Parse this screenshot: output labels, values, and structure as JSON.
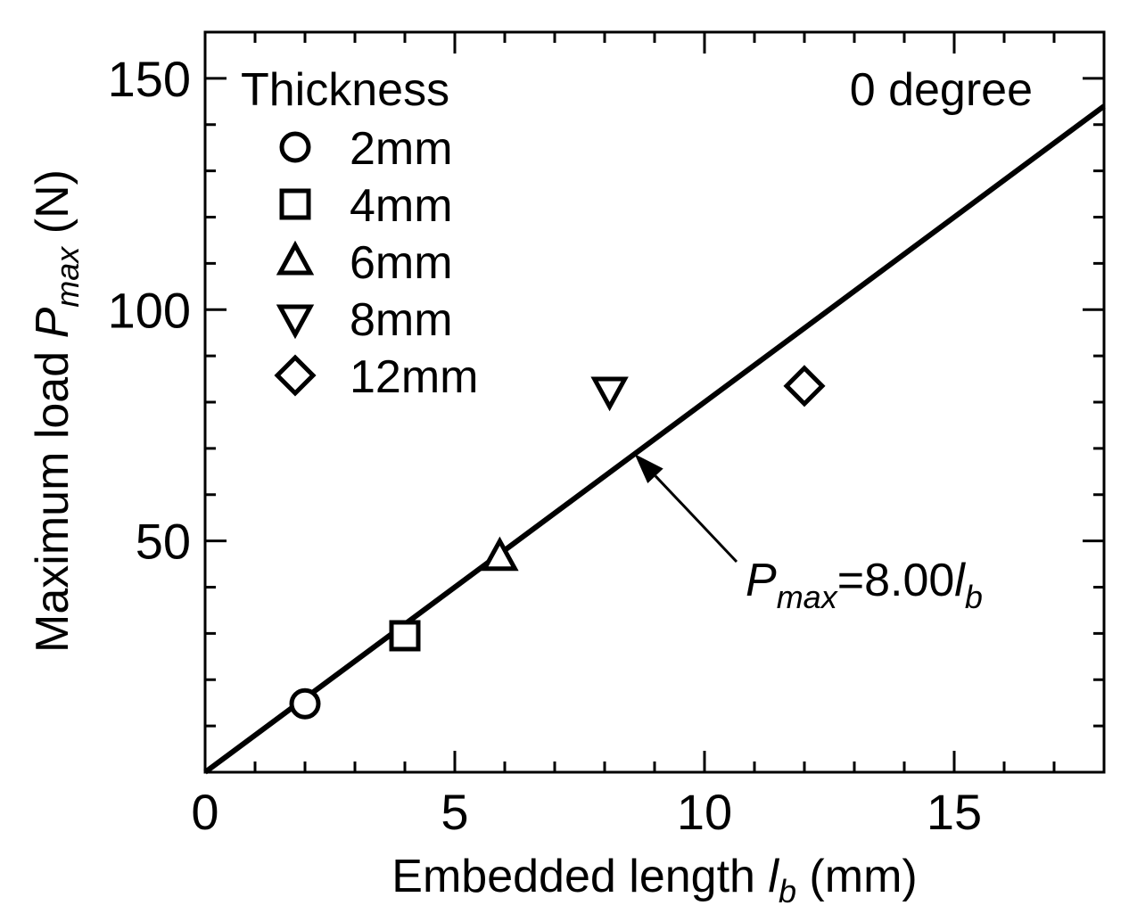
{
  "chart_data": {
    "type": "scatter",
    "xlabel": "Embedded length l_b (mm)",
    "xlabel_parts": {
      "pre": "Embedded length ",
      "var": "l",
      "sub": "b",
      "post": " (mm)"
    },
    "ylabel": "Maximum load P_max (N)",
    "ylabel_parts": {
      "pre": "Maximum load ",
      "var": "P",
      "sub": "max",
      "post": " (N)"
    },
    "xlim": [
      0,
      18
    ],
    "ylim": [
      0,
      160
    ],
    "x_ticks": [
      0,
      5,
      10,
      15
    ],
    "x_tick_labels": [
      "0",
      "5",
      "10",
      "15"
    ],
    "x_minor_step": 1,
    "y_ticks": [
      50,
      100,
      150
    ],
    "y_tick_labels": [
      "50",
      "100",
      "150"
    ],
    "y_minor_step": 10,
    "grid": false,
    "legend_title": "Thickness",
    "legend_position": "top-left",
    "condition_label": "0 degree",
    "series": [
      {
        "name": "2mm",
        "marker": "circle",
        "x": [
          2
        ],
        "y": [
          14.8
        ]
      },
      {
        "name": "4mm",
        "marker": "square",
        "x": [
          4
        ],
        "y": [
          29.5
        ]
      },
      {
        "name": "6mm",
        "marker": "triangle-up",
        "x": [
          5.9
        ],
        "y": [
          46.5
        ]
      },
      {
        "name": "8mm",
        "marker": "triangle-down",
        "x": [
          8.1
        ],
        "y": [
          82.5
        ]
      },
      {
        "name": "12mm",
        "marker": "diamond",
        "x": [
          12
        ],
        "y": [
          83.5
        ]
      }
    ],
    "fit_line": {
      "slope": 8.0,
      "intercept": 0,
      "x_range": [
        0,
        18
      ],
      "equation": {
        "var": "P",
        "sub": "max",
        "rhs": "=8.00",
        "rhs_var": "l",
        "rhs_sub": "b"
      },
      "arrow_target_x": 8.6
    }
  }
}
